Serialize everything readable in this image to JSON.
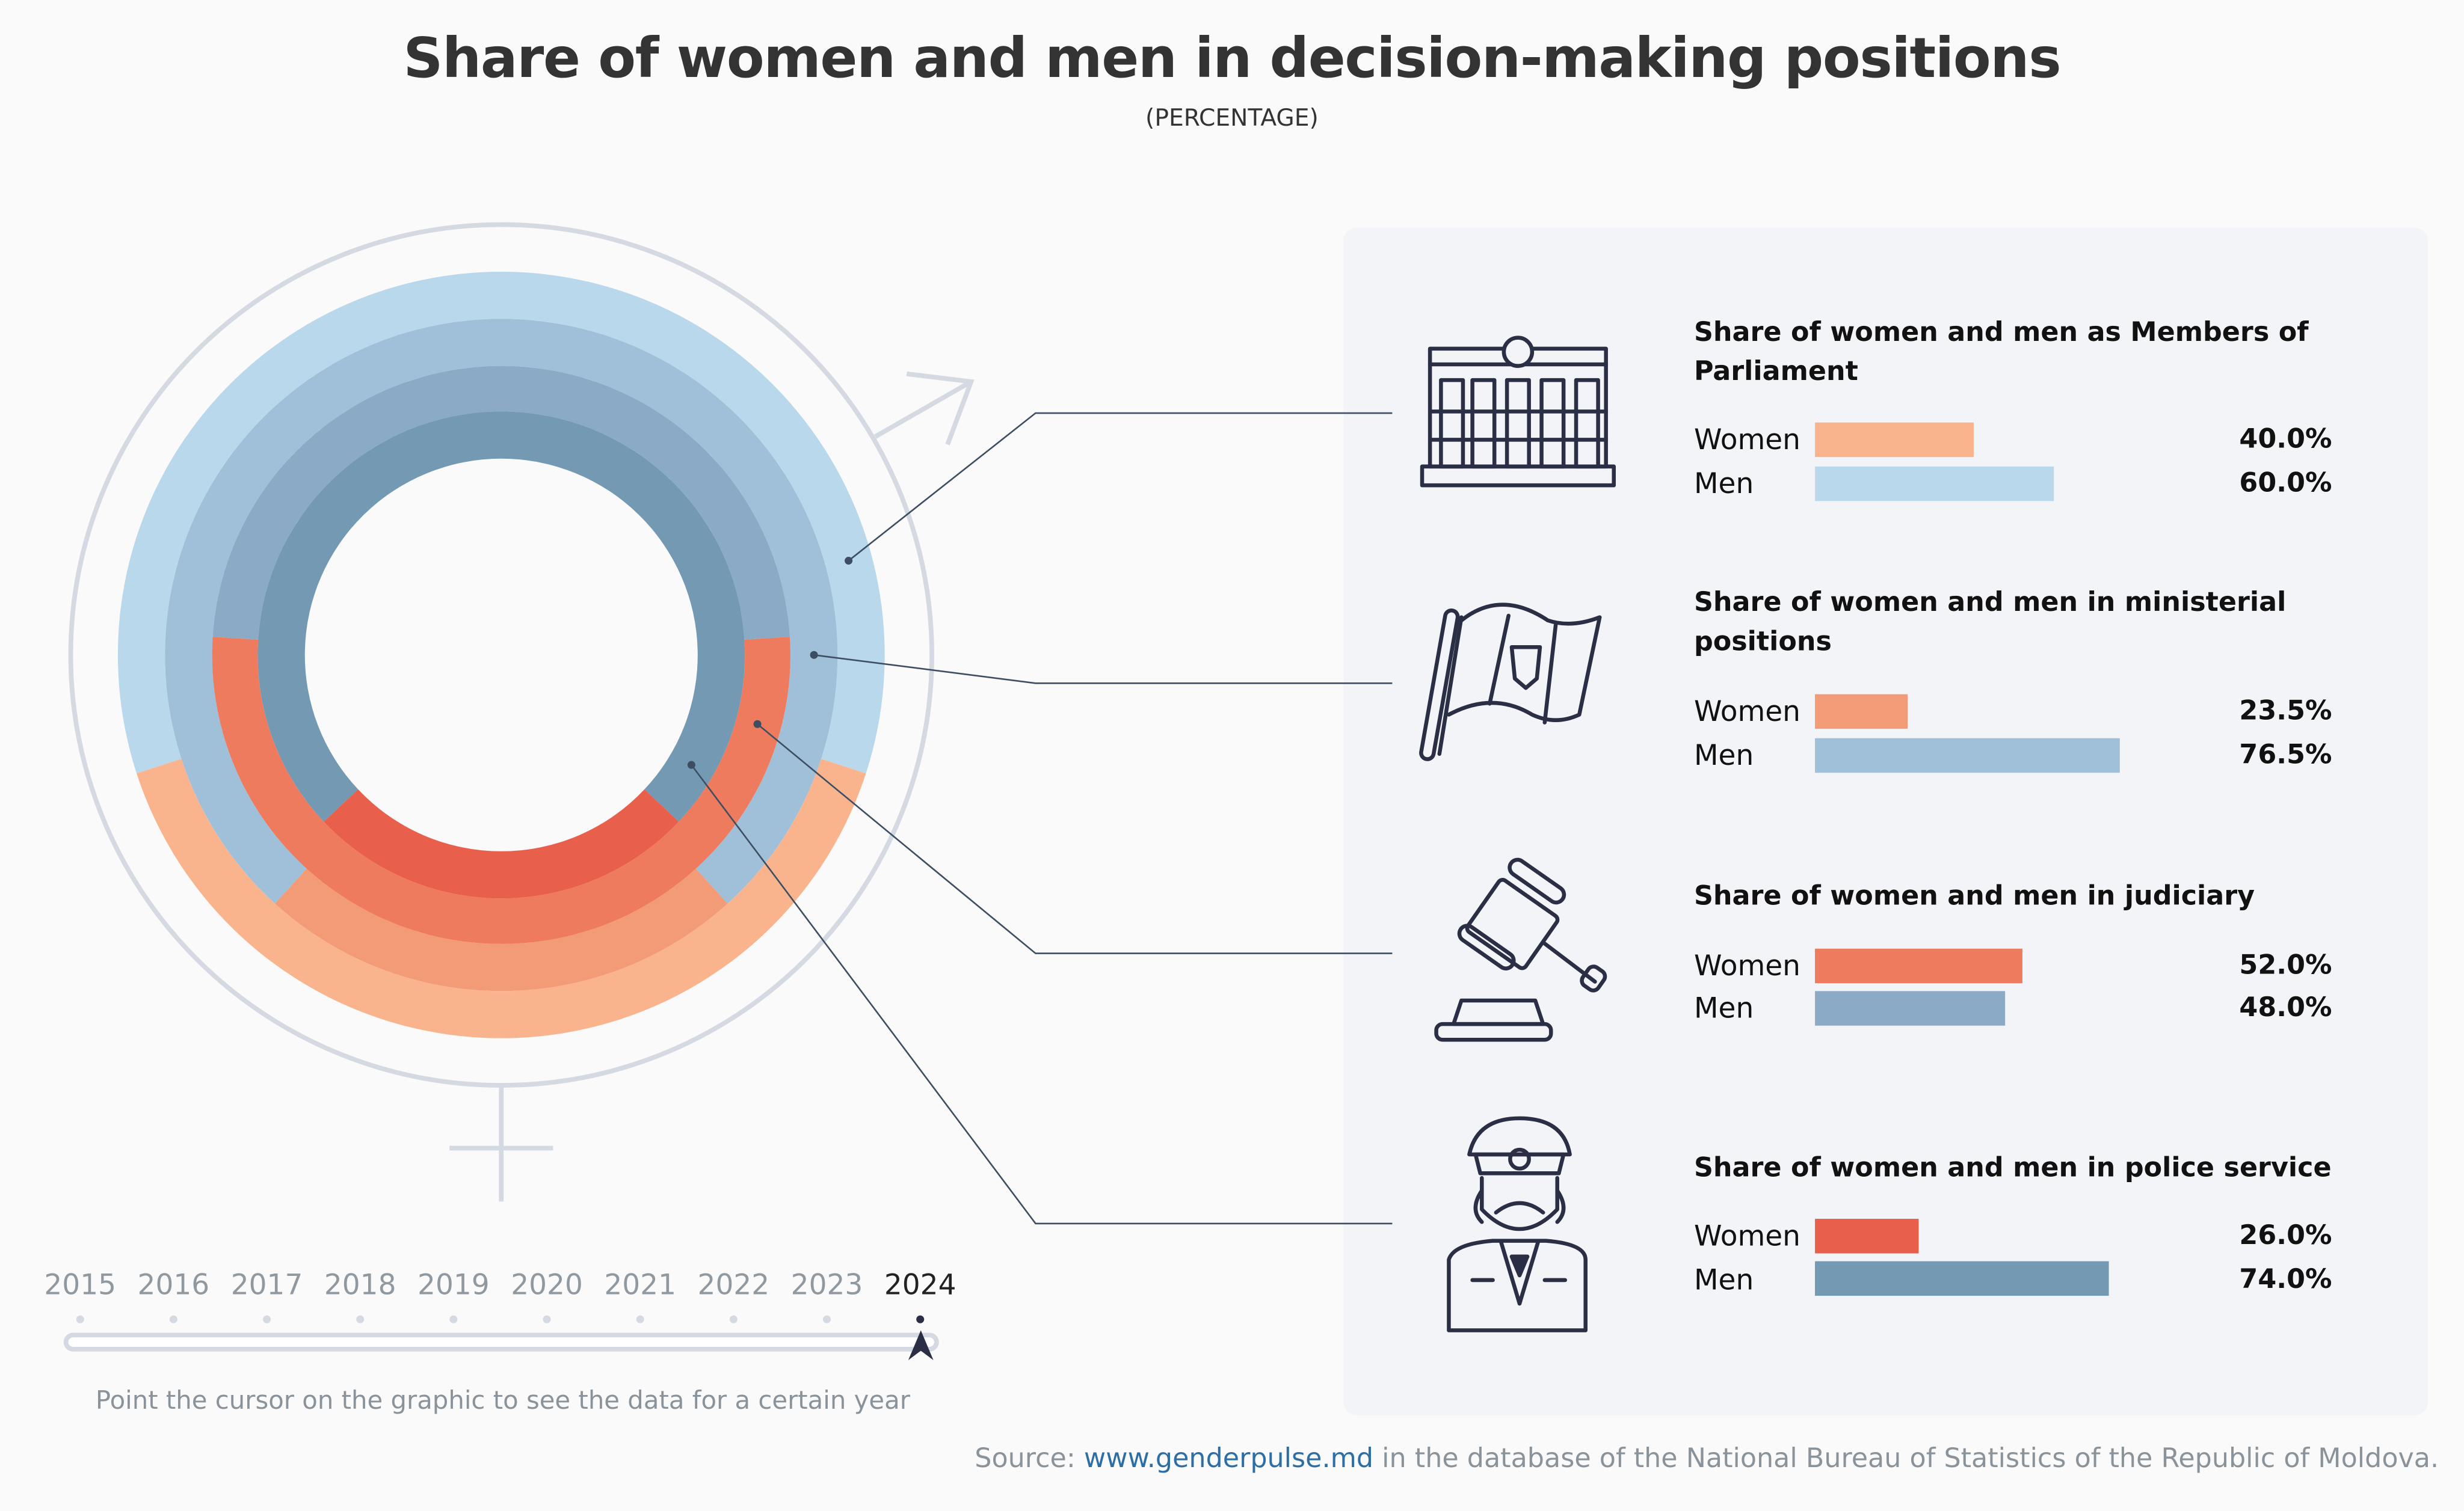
{
  "title": "Share of women and men in decision-making positions",
  "subtitle": "(PERCENTAGE)",
  "chart_data": {
    "type": "donut",
    "title": "Share of women and men in decision-making positions",
    "subtitle": "(PERCENTAGE)",
    "year": "2024",
    "categories": [
      "Members of Parliament",
      "Ministerial positions",
      "Judiciary",
      "Police service"
    ],
    "series": [
      {
        "name": "Women",
        "values": [
          40.0,
          23.5,
          52.0,
          26.0
        ]
      },
      {
        "name": "Men",
        "values": [
          60.0,
          76.5,
          48.0,
          74.0
        ]
      }
    ],
    "colors": {
      "women": [
        "#F9B48E",
        "#F39A77",
        "#EE7B5E",
        "#E8604C"
      ],
      "men": [
        "#BAD8EC",
        "#A0C0DA",
        "#8AAAC6",
        "#7399B3"
      ]
    }
  },
  "sections": [
    {
      "title": "Share of women and men as Members of Parliament",
      "icon": "parliament-building-icon",
      "women_label": "Women",
      "men_label": "Men",
      "women_value": "40.0%",
      "men_value": "60.0%"
    },
    {
      "title": "Share of women and men in ministerial positions",
      "icon": "flag-icon",
      "women_label": "Women",
      "men_label": "Men",
      "women_value": "23.5%",
      "men_value": "76.5%"
    },
    {
      "title": "Share of women and men in judiciary",
      "icon": "gavel-icon",
      "women_label": "Women",
      "men_label": "Men",
      "women_value": "52.0%",
      "men_value": "48.0%"
    },
    {
      "title": "Share of women and men in police service",
      "icon": "police-officer-icon",
      "women_label": "Women",
      "men_label": "Men",
      "women_value": "26.0%",
      "men_value": "74.0%"
    }
  ],
  "timeline": {
    "years": [
      "2015",
      "2016",
      "2017",
      "2018",
      "2019",
      "2020",
      "2021",
      "2022",
      "2023",
      "2024"
    ],
    "selected": "2024",
    "hint": "Point the cursor on the graphic to see the data for a certain year"
  },
  "source": {
    "prefix": "Source:",
    "link": "www.genderpulse.md",
    "suffix": "in the database of the National Bureau of Statistics of the Republic of Moldova."
  }
}
